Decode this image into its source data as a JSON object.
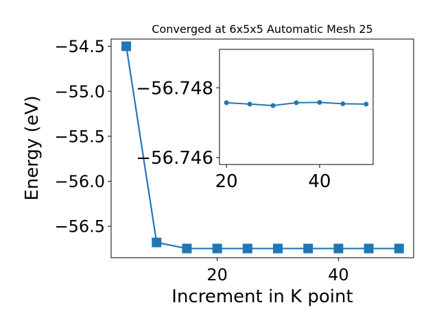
{
  "chart_data": [
    {
      "type": "line",
      "title": "Converged at 6x5x5 Automatic Mesh 25",
      "xlabel": "Increment in K point",
      "ylabel": "Energy (eV)",
      "xlim": [
        2.5,
        52.4
      ],
      "ylim": [
        -56.85,
        -54.42
      ],
      "xticks": [
        20,
        40
      ],
      "xtick_labels": [
        "20",
        "40"
      ],
      "yticks": [
        -54.5,
        -55.0,
        -55.5,
        -56.0,
        -56.5
      ],
      "ytick_labels": [
        "−54.5",
        "−55.0",
        "−55.5",
        "−56.0",
        "−56.5"
      ],
      "grid": false,
      "marker": "square",
      "color": "#1f77b4",
      "x": [
        5,
        10,
        15,
        20,
        25,
        30,
        35,
        40,
        45,
        50
      ],
      "y": [
        -54.5,
        -56.68,
        -56.7475,
        -56.7475,
        -56.7475,
        -56.7475,
        -56.7475,
        -56.7475,
        -56.7475,
        -56.7475
      ]
    },
    {
      "type": "line",
      "title": "",
      "xlabel": "",
      "ylabel": "",
      "inset": true,
      "xlim": [
        18.5,
        51.5
      ],
      "ylim": [
        -56.7458,
        -56.7491
      ],
      "xticks": [
        20,
        40
      ],
      "xtick_labels": [
        "20",
        "40"
      ],
      "yticks": [
        -56.748,
        -56.746
      ],
      "ytick_labels": [
        "−56.748",
        "−56.746"
      ],
      "grid": false,
      "marker": "circle",
      "color": "#1f77b4",
      "x": [
        20,
        25,
        30,
        35,
        40,
        45,
        50
      ],
      "y": [
        -56.74757,
        -56.74753,
        -56.74749,
        -56.74757,
        -56.74758,
        -56.74754,
        -56.74753
      ]
    }
  ]
}
